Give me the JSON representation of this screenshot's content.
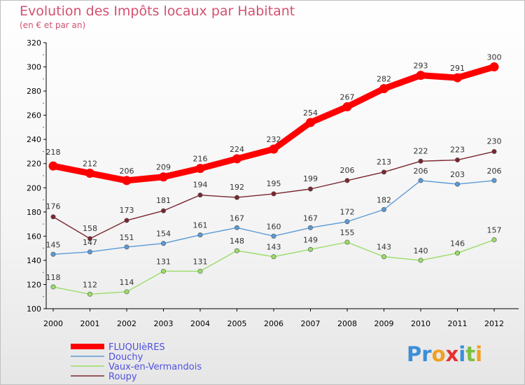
{
  "chart_data": {
    "type": "line",
    "title": "Evolution des Impôts locaux par Habitant",
    "subtitle": "(en € et par an)",
    "x": [
      "2000",
      "2001",
      "2002",
      "2003",
      "2004",
      "2005",
      "2006",
      "2007",
      "2008",
      "2009",
      "2010",
      "2011",
      "2012"
    ],
    "ylim": [
      100,
      320
    ],
    "yticks": [
      100,
      120,
      140,
      160,
      180,
      200,
      220,
      240,
      260,
      280,
      300,
      320
    ],
    "series": [
      {
        "name": "FLUQUIèRES",
        "color": "#ff0000",
        "values": [
          218,
          212,
          206,
          209,
          216,
          224,
          232,
          254,
          267,
          282,
          293,
          291,
          300
        ],
        "labels": [
          "218",
          "212",
          "206",
          "209",
          "216",
          "224",
          "232",
          "254",
          "267",
          "282",
          "293",
          "291",
          "300"
        ]
      },
      {
        "name": "Douchy",
        "color": "#5a9ad6",
        "values": [
          145,
          147,
          151,
          154,
          161,
          167,
          160,
          167,
          172,
          182,
          206,
          203,
          206
        ],
        "labels": [
          "145",
          "147",
          "151",
          "154",
          "161",
          "167",
          "160",
          "167",
          "172",
          "182",
          "206",
          "203",
          "206"
        ]
      },
      {
        "name": "Vaux-en-Vermandois",
        "color": "#99dd66",
        "values": [
          118,
          112,
          114,
          131,
          131,
          148,
          143,
          149,
          155,
          143,
          140,
          146,
          157
        ],
        "labels": [
          "118",
          "112",
          "114",
          "131",
          "131",
          "148",
          "143",
          "149",
          "155",
          "143",
          "140",
          "146",
          "157"
        ]
      },
      {
        "name": "Roupy",
        "color": "#7a2630",
        "values": [
          176,
          158,
          173,
          181,
          194,
          192,
          195,
          199,
          206,
          213,
          222,
          223,
          230
        ],
        "labels": [
          "176",
          "158",
          "173",
          "181",
          "194",
          "192",
          "195",
          "199",
          "206",
          "213",
          "222",
          "223",
          "230"
        ]
      }
    ],
    "legend_position": "bottom-left",
    "legend_text_color": "#5050e0",
    "grid": false
  },
  "logo": {
    "letters": [
      {
        "ch": "P",
        "color": "#3a8fd8"
      },
      {
        "ch": "r",
        "color": "#3a8fd8"
      },
      {
        "ch": "o",
        "color": "#f0a020"
      },
      {
        "ch": "x",
        "color": "#e83030"
      },
      {
        "ch": "i",
        "color": "#3a8fd8"
      },
      {
        "ch": "t",
        "color": "#7cc040"
      },
      {
        "ch": "i",
        "color": "#f0a020"
      }
    ]
  }
}
